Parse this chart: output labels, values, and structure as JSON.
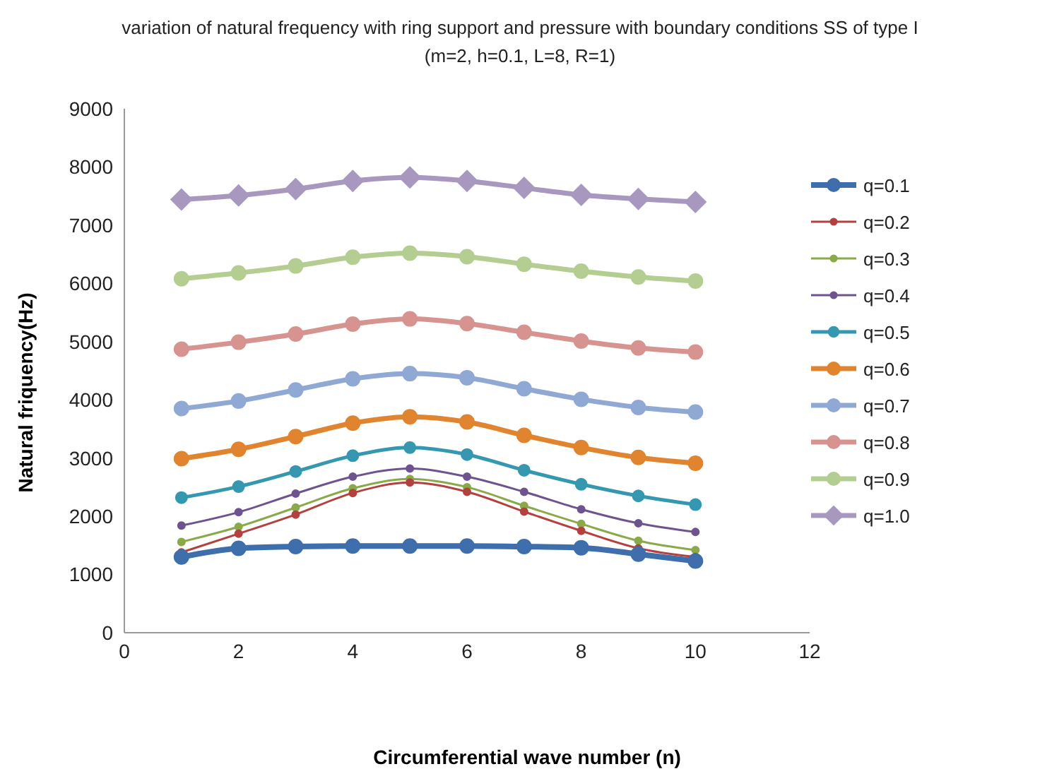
{
  "chart_data": {
    "type": "line",
    "title": "variation  of natural frequency with ring support and pressure with boundary conditions SS  of type I  (m=2, h=0.1, L=8, R=1)",
    "xlabel": "Circumferential wave number (n)",
    "ylabel": "Natural friquency(Hz)",
    "x": [
      1,
      2,
      3,
      4,
      5,
      6,
      7,
      8,
      9,
      10
    ],
    "xlim": [
      0,
      12
    ],
    "xticks": [
      0,
      2,
      4,
      6,
      8,
      10,
      12
    ],
    "ylim": [
      0,
      9000
    ],
    "yticks": [
      0,
      1000,
      2000,
      3000,
      4000,
      5000,
      6000,
      7000,
      8000,
      9000
    ],
    "grid": false,
    "legend": "right",
    "series": [
      {
        "name": "q=0.1",
        "color": "#3e6eab",
        "marker": "circle",
        "values": [
          1300,
          1450,
          1480,
          1490,
          1490,
          1490,
          1480,
          1460,
          1350,
          1230
        ]
      },
      {
        "name": "q=0.2",
        "color": "#b3413f",
        "marker": "circle",
        "values": [
          1380,
          1700,
          2030,
          2400,
          2580,
          2420,
          2080,
          1750,
          1450,
          1300
        ]
      },
      {
        "name": "q=0.3",
        "color": "#8aa949",
        "marker": "circle",
        "values": [
          1560,
          1820,
          2150,
          2480,
          2640,
          2500,
          2180,
          1870,
          1580,
          1420
        ]
      },
      {
        "name": "q=0.4",
        "color": "#6e548f",
        "marker": "circle",
        "values": [
          1840,
          2070,
          2390,
          2680,
          2820,
          2680,
          2420,
          2120,
          1880,
          1730
        ]
      },
      {
        "name": "q=0.5",
        "color": "#3597b0",
        "marker": "circle",
        "values": [
          2320,
          2510,
          2770,
          3040,
          3180,
          3060,
          2790,
          2550,
          2350,
          2200
        ]
      },
      {
        "name": "q=0.6",
        "color": "#e0842f",
        "marker": "circle",
        "values": [
          2990,
          3150,
          3370,
          3600,
          3710,
          3620,
          3390,
          3180,
          3010,
          2910
        ]
      },
      {
        "name": "q=0.7",
        "color": "#8fa8d4",
        "marker": "circle",
        "values": [
          3850,
          3980,
          4170,
          4360,
          4450,
          4380,
          4190,
          4010,
          3870,
          3790
        ]
      },
      {
        "name": "q=0.8",
        "color": "#d69390",
        "marker": "circle",
        "values": [
          4870,
          4990,
          5130,
          5300,
          5390,
          5310,
          5160,
          5010,
          4890,
          4820
        ]
      },
      {
        "name": "q=0.9",
        "color": "#b4cd91",
        "marker": "circle",
        "values": [
          6080,
          6180,
          6300,
          6450,
          6520,
          6460,
          6330,
          6210,
          6110,
          6040
        ]
      },
      {
        "name": "q=1.0",
        "color": "#a898bf",
        "marker": "diamond",
        "values": [
          7440,
          7510,
          7620,
          7760,
          7820,
          7760,
          7640,
          7520,
          7450,
          7400
        ]
      }
    ]
  }
}
